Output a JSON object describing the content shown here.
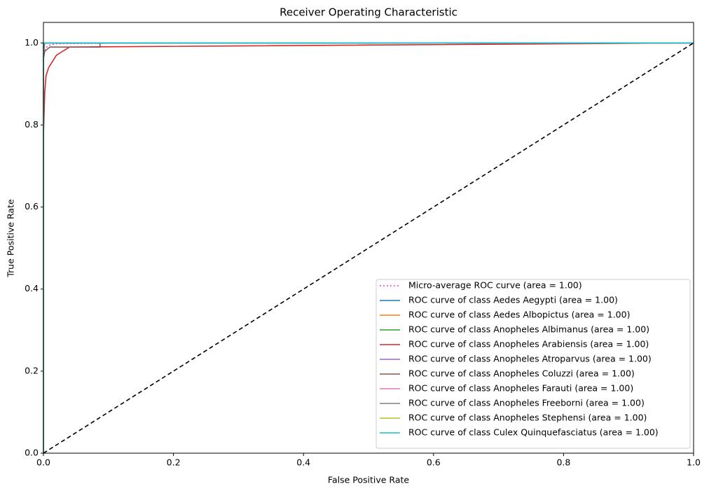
{
  "chart_data": {
    "type": "line",
    "title": "Receiver Operating Characteristic",
    "x_label": "False Positive Rate",
    "y_label": "True Positive Rate",
    "xlim": [
      0,
      1
    ],
    "ylim": [
      0,
      1.05
    ],
    "xticks": [
      {
        "value": 0,
        "label": "0.0"
      },
      0.2,
      0.4,
      0.6,
      0.8,
      {
        "value": 1,
        "label": "1.0"
      }
    ],
    "yticks": [
      {
        "value": 0,
        "label": "0.0"
      },
      0.2,
      0.4,
      0.6,
      0.8,
      {
        "value": 1,
        "label": "1.0"
      }
    ],
    "legend": "lower right",
    "diagonal": {
      "x": [
        0,
        1
      ],
      "y": [
        0,
        1
      ],
      "color": "#000000",
      "dash": "dashed"
    },
    "series": [
      {
        "name": "Micro-average ROC curve (area = 1.00)",
        "color": "#e83fd0",
        "dash": "dotted",
        "x": [
          0,
          0,
          0.002,
          0.005,
          0.01,
          0.02,
          0.155,
          1
        ],
        "values": [
          0,
          0.97,
          0.98,
          0.99,
          0.995,
          0.998,
          1,
          1
        ]
      },
      {
        "name": "ROC curve of class Aedes Aegypti (area = 1.00)",
        "color": "#1f77b4",
        "x": [
          0,
          0,
          1
        ],
        "values": [
          0,
          1,
          1
        ]
      },
      {
        "name": "ROC curve of class Aedes Albopictus (area = 1.00)",
        "color": "#ff7f0e",
        "x": [
          0,
          0,
          1
        ],
        "values": [
          0,
          1,
          1
        ]
      },
      {
        "name": "ROC curve of class Anopheles Albimanus (area = 1.00)",
        "color": "#2ca02c",
        "x": [
          0,
          0,
          1
        ],
        "values": [
          0,
          1,
          1
        ]
      },
      {
        "name": "ROC curve of class Anopheles Arabiensis (area = 1.00)",
        "color": "#d62728",
        "x": [
          0,
          0,
          0.002,
          0.004,
          0.006,
          0.008,
          0.012,
          0.02,
          0.03,
          0.04,
          1
        ],
        "values": [
          0,
          0.77,
          0.88,
          0.92,
          0.93,
          0.94,
          0.95,
          0.97,
          0.98,
          0.99,
          1
        ]
      },
      {
        "name": "ROC curve of class Anopheles Atroparvus (area = 1.00)",
        "color": "#9467bd",
        "x": [
          0,
          0,
          1
        ],
        "values": [
          0,
          1,
          1
        ]
      },
      {
        "name": "ROC curve of class Anopheles Coluzzi (area = 1.00)",
        "color": "#8c564b",
        "x": [
          0,
          0,
          0.002,
          0.01,
          0.087,
          0.087,
          1
        ],
        "values": [
          0,
          0.96,
          0.98,
          0.99,
          0.99,
          1,
          1
        ]
      },
      {
        "name": "ROC curve of class Anopheles Farauti (area = 1.00)",
        "color": "#e377c2",
        "x": [
          0,
          0,
          1
        ],
        "values": [
          0,
          1,
          1
        ]
      },
      {
        "name": "ROC curve of class Anopheles Freeborni (area = 1.00)",
        "color": "#7f7f7f",
        "x": [
          0,
          0,
          0.002,
          1
        ],
        "values": [
          0,
          0.97,
          1,
          1
        ]
      },
      {
        "name": "ROC curve of class Anopheles Stephensi (area = 1.00)",
        "color": "#bcbd22",
        "x": [
          0,
          0,
          1
        ],
        "values": [
          0,
          1,
          1
        ]
      },
      {
        "name": "ROC curve of class Culex Quinquefasciatus (area = 1.00)",
        "color": "#17becf",
        "x": [
          0,
          0,
          1
        ],
        "values": [
          0,
          1,
          1
        ]
      }
    ]
  }
}
